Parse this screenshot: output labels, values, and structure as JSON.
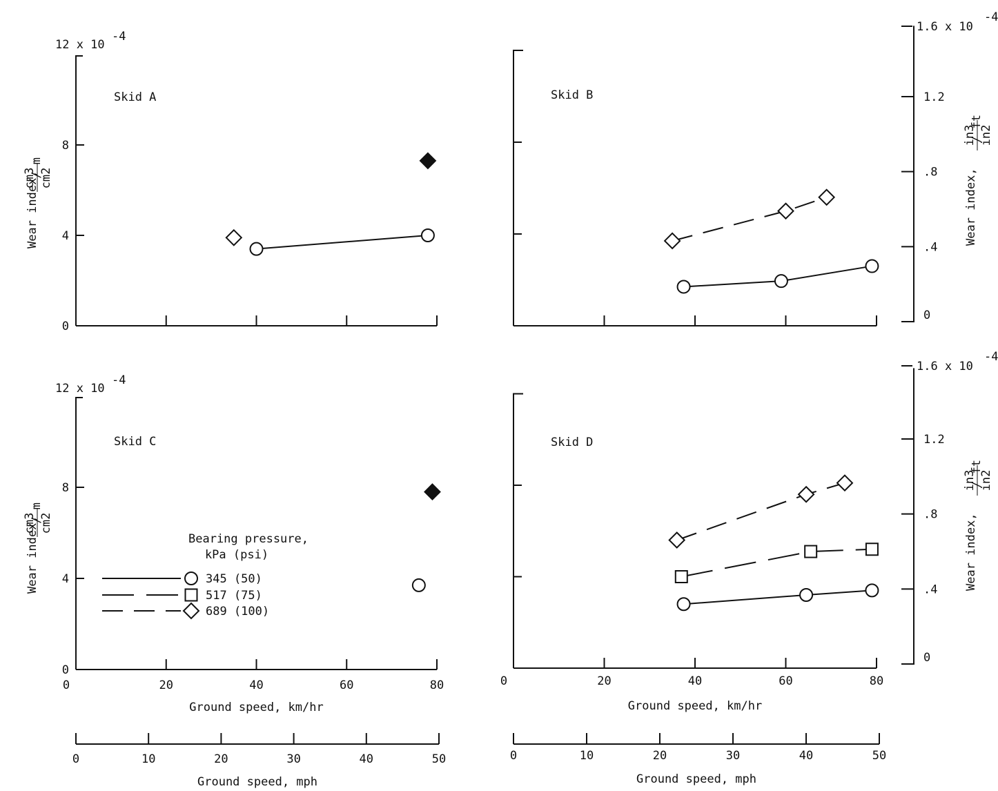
{
  "colors": {
    "ink": "#111111",
    "paper": "#ffffff"
  },
  "axis_titles": {
    "x_metric": "Ground speed, km/hr",
    "x_imperial": "Ground speed, mph",
    "y_left": "Wear index,",
    "y_left_unit": {
      "num": "cm",
      "num_sup": "3",
      "den": "cm",
      "den_sup": "2",
      "tail": "m"
    },
    "y_right": "Wear index,",
    "y_right_unit": {
      "num": "in",
      "num_sup": "3",
      "den": "in",
      "den_sup": "2",
      "tail": "ft"
    }
  },
  "ticks": {
    "kmh": [
      0,
      20,
      40,
      60,
      80
    ],
    "mph": [
      0,
      10,
      20,
      30,
      40,
      50
    ],
    "left": [
      0,
      4,
      8
    ],
    "left_top_label": "12 x 10",
    "left_top_exp": "-4",
    "right": [
      {
        "value": 0,
        "label": "0"
      },
      {
        "value": 0.4,
        "label": ".4"
      },
      {
        "value": 0.8,
        "label": ".8"
      },
      {
        "value": 1.2,
        "label": "1.2"
      }
    ],
    "right_top_label": "1.6 x 10",
    "right_top_exp": "-4"
  },
  "legend": {
    "title_line1": "Bearing pressure,",
    "title_line2": "kPa (psi)",
    "entries": [
      {
        "marker": "circle",
        "dash": "solid",
        "label": "345 (50)"
      },
      {
        "marker": "square",
        "dash": "long-dash",
        "label": "517 (75)"
      },
      {
        "marker": "diamond",
        "dash": "dash",
        "label": "689 (100)"
      }
    ]
  },
  "chart_data": [
    {
      "type": "line",
      "title": "Skid A",
      "xlabel": "Ground speed, km/hr",
      "xlim": [
        0,
        80
      ],
      "ylabel": "Wear index, cm3/cm2/m",
      "ylim": [
        0,
        12
      ],
      "y_scale_exp": "x 10^-4",
      "grid": false,
      "series": [
        {
          "name": "345 (50)",
          "marker": "circle",
          "dash": "solid",
          "connected": true,
          "points": [
            [
              40,
              3.4
            ],
            [
              78,
              4.0
            ]
          ]
        },
        {
          "name": "689 (100)",
          "marker": "diamond",
          "dash": "dash",
          "connected": false,
          "points": [
            [
              35,
              3.9
            ]
          ]
        },
        {
          "marker": "diamond",
          "filled": true,
          "connected": false,
          "points": [
            [
              78,
              7.3
            ]
          ]
        }
      ]
    },
    {
      "type": "line",
      "title": "Skid B",
      "xlabel": "Ground speed, km/hr",
      "xlim": [
        0,
        80
      ],
      "ylabel": "Wear index, in3/in2/ft",
      "ylim": [
        0,
        1.6
      ],
      "y_scale_exp": "x 10^-4",
      "grid": false,
      "series": [
        {
          "name": "345 (50)",
          "marker": "circle",
          "dash": "solid",
          "connected": true,
          "points": [
            [
              37.5,
              1.7
            ],
            [
              59,
              1.95
            ],
            [
              79,
              2.6
            ]
          ]
        },
        {
          "name": "689 (100)",
          "marker": "diamond",
          "dash": "dash",
          "connected": true,
          "points": [
            [
              35,
              3.7
            ],
            [
              60,
              5.0
            ],
            [
              69,
              5.6
            ]
          ]
        }
      ]
    },
    {
      "type": "line",
      "title": "Skid C",
      "xlabel": "Ground speed, km/hr",
      "xlim": [
        0,
        80
      ],
      "ylabel": "Wear index, cm3/cm2/m",
      "ylim": [
        0,
        12
      ],
      "y_scale_exp": "x 10^-4",
      "grid": false,
      "series": [
        {
          "name": "345 (50)",
          "marker": "circle",
          "dash": "solid",
          "connected": false,
          "points": [
            [
              76,
              3.7
            ]
          ]
        },
        {
          "marker": "diamond",
          "filled": true,
          "connected": false,
          "points": [
            [
              79,
              7.8
            ]
          ]
        }
      ]
    },
    {
      "type": "line",
      "title": "Skid D",
      "xlabel": "Ground speed, km/hr",
      "xlim": [
        0,
        80
      ],
      "ylabel": "Wear index, in3/in2/ft",
      "ylim": [
        0,
        1.6
      ],
      "y_scale_exp": "x 10^-4",
      "grid": false,
      "series": [
        {
          "name": "345 (50)",
          "marker": "circle",
          "dash": "solid",
          "connected": true,
          "points": [
            [
              37.5,
              2.8
            ],
            [
              64.5,
              3.2
            ],
            [
              79,
              3.4
            ]
          ]
        },
        {
          "name": "517 (75)",
          "marker": "square",
          "dash": "long-dash",
          "connected": true,
          "points": [
            [
              37,
              4.0
            ],
            [
              65.5,
              5.1
            ],
            [
              79,
              5.2
            ]
          ]
        },
        {
          "name": "689 (100)",
          "marker": "diamond",
          "dash": "dash",
          "connected": true,
          "points": [
            [
              36,
              5.6
            ],
            [
              64.5,
              7.6
            ],
            [
              73,
              8.1
            ]
          ]
        }
      ]
    }
  ]
}
